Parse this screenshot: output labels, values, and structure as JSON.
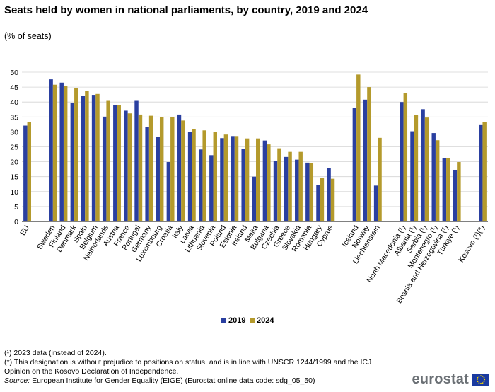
{
  "header": {
    "title": "Seats held by women in national parliaments, by country, 2019 and 2024",
    "subtitle": "(% of seats)"
  },
  "colors": {
    "series_2019": "#2a3fa0",
    "series_2024": "#b49a2c",
    "grid": "#d4d4d4"
  },
  "chart_data": {
    "type": "bar",
    "title": "Seats held by women in national parliaments, by country, 2019 and 2024",
    "ylabel": "% of seats",
    "ylim": [
      0,
      50
    ],
    "yticks": [
      0,
      5,
      10,
      15,
      20,
      25,
      30,
      35,
      40,
      45,
      50
    ],
    "grid": true,
    "legend_position": "bottom-center",
    "groups": [
      [
        "EU"
      ],
      [
        "Sweden",
        "Finland",
        "Denmark",
        "Spain",
        "Belgium",
        "Netherlands",
        "Austria",
        "France",
        "Portugal",
        "Germany",
        "Luxembourg",
        "Croatia",
        "Italy",
        "Latvia",
        "Lithuania",
        "Slovenia",
        "Poland",
        "Estonia",
        "Ireland",
        "Malta",
        "Bulgaria",
        "Czechia",
        "Greece",
        "Slovakia",
        "Romania",
        "Hungary",
        "Cyprus"
      ],
      [
        "Iceland",
        "Norway",
        "Liechtenstein"
      ],
      [
        "North Macedonia (¹)",
        "Albania (¹)",
        "Serbia (¹)",
        "Montenegro (¹)",
        "Bosnia and Herzegovina (¹)",
        "Türkiye (¹)"
      ],
      [
        "Kosovo (¹)(*)"
      ]
    ],
    "categories": [
      "EU",
      "Sweden",
      "Finland",
      "Denmark",
      "Spain",
      "Belgium",
      "Netherlands",
      "Austria",
      "France",
      "Portugal",
      "Germany",
      "Luxembourg",
      "Croatia",
      "Italy",
      "Latvia",
      "Lithuania",
      "Slovenia",
      "Poland",
      "Estonia",
      "Ireland",
      "Malta",
      "Bulgaria",
      "Czechia",
      "Greece",
      "Slovakia",
      "Romania",
      "Hungary",
      "Cyprus",
      "Iceland",
      "Norway",
      "Liechtenstein",
      "North Macedonia (¹)",
      "Albania (¹)",
      "Serbia (¹)",
      "Montenegro (¹)",
      "Bosnia and Herzegovina (¹)",
      "Türkiye (¹)",
      "Kosovo (¹)(*)"
    ],
    "series": [
      {
        "name": "2019",
        "values": [
          32.1,
          47.6,
          46.5,
          39.7,
          42.1,
          42.4,
          35.1,
          39.0,
          37.1,
          40.4,
          31.6,
          28.3,
          19.9,
          35.8,
          30.0,
          24.1,
          22.2,
          27.9,
          28.6,
          24.3,
          15.0,
          27.1,
          20.3,
          21.6,
          20.7,
          19.7,
          12.2,
          17.9,
          38.1,
          40.8,
          12.0,
          40.0,
          30.2,
          37.6,
          29.6,
          21.1,
          17.3,
          32.5
        ]
      },
      {
        "name": "2024",
        "values": [
          33.4,
          45.8,
          45.5,
          44.7,
          43.7,
          42.7,
          40.4,
          39.0,
          36.2,
          35.8,
          35.4,
          35.0,
          35.0,
          33.8,
          31.0,
          30.5,
          30.0,
          29.1,
          28.6,
          27.8,
          27.8,
          25.8,
          24.5,
          23.3,
          23.3,
          19.5,
          14.6,
          14.3,
          49.2,
          45.0,
          28.0,
          42.9,
          35.7,
          34.8,
          27.2,
          21.1,
          19.9,
          33.3
        ]
      }
    ],
    "legend": [
      "2019",
      "2024"
    ]
  },
  "notes": {
    "note1": "(¹) 2023 data (instead of 2024).",
    "note2": "(*) This designation is without prejudice to positions on status, and is in line with UNSCR 1244/1999 and the ICJ",
    "note3": "Opinion on the Kosovo Declaration of Independence.",
    "source_label": "Source:",
    "source_text": " European Institute  for Gender Equality (EIGE) (Eurostat online data code: sdg_05_50)"
  },
  "logo": {
    "text": "eurostat",
    "flag_icon": "eu-flag-icon"
  }
}
